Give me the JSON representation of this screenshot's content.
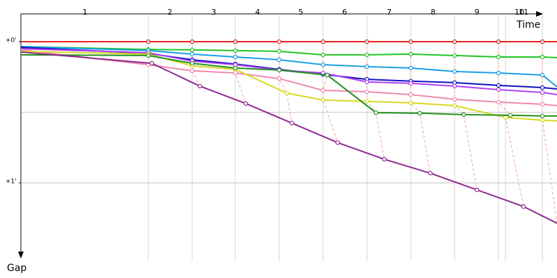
{
  "chart_data": {
    "type": "line",
    "x_label": "Time",
    "y_label": "Gap",
    "xlim": [
      0,
      770
    ],
    "ylim": [
      -11.8,
      91.6
    ],
    "yticks": [
      {
        "value": 0,
        "label": "+0'"
      },
      {
        "value": 60,
        "label": "+1'"
      }
    ],
    "grid": [
      30,
      60
    ],
    "lap_lines": [
      183,
      246,
      308,
      371,
      434,
      497,
      560,
      623,
      686,
      696,
      749
    ],
    "laps": [
      {
        "label": "1",
        "x": 92
      },
      {
        "label": "2",
        "x": 214
      },
      {
        "label": "3",
        "x": 277
      },
      {
        "label": "4",
        "x": 340
      },
      {
        "label": "5",
        "x": 402
      },
      {
        "label": "6",
        "x": 465
      },
      {
        "label": "7",
        "x": 529
      },
      {
        "label": "8",
        "x": 592
      },
      {
        "label": "9",
        "x": 655
      },
      {
        "label": "10",
        "x": 716
      },
      {
        "label": "11",
        "x": 722
      }
    ],
    "series": [
      {
        "color": "#e8201c",
        "x": [
          0,
          183,
          246,
          308,
          371,
          434,
          497,
          560,
          623,
          686,
          749,
          770
        ],
        "values": [
          0,
          0,
          0,
          0,
          0,
          0,
          0,
          0,
          0,
          0,
          0,
          0
        ]
      },
      {
        "color": "#22c422",
        "x": [
          0,
          183,
          246,
          308,
          371,
          434,
          497,
          560,
          623,
          686,
          749,
          770
        ],
        "values": [
          2.1,
          3.3,
          3.5,
          3.8,
          4.1,
          5.6,
          5.6,
          5.3,
          5.9,
          6.5,
          6.5,
          6.8
        ]
      },
      {
        "color": "#1a9ee8",
        "x": [
          0,
          183,
          246,
          308,
          371,
          434,
          497,
          560,
          623,
          686,
          749,
          770
        ],
        "values": [
          2.1,
          3.8,
          5.3,
          6.5,
          7.7,
          9.8,
          10.6,
          11.2,
          12.7,
          13.3,
          14.2,
          19.2
        ]
      },
      {
        "color": "#1010c0",
        "x": [
          0,
          183,
          246,
          308,
          371,
          434,
          497,
          560,
          623,
          686,
          749,
          770
        ],
        "values": [
          2.4,
          5.0,
          7.7,
          9.5,
          11.8,
          13.9,
          16.0,
          16.8,
          17.4,
          18.6,
          19.5,
          20.1
        ]
      },
      {
        "color": "#b040f0",
        "x": [
          0,
          183,
          246,
          308,
          371,
          434,
          497,
          560,
          623,
          686,
          749,
          770
        ],
        "values": [
          3.0,
          4.7,
          8.3,
          9.8,
          12.1,
          13.3,
          17.1,
          17.7,
          18.9,
          20.4,
          21.6,
          22.5
        ]
      },
      {
        "color": "#f088b0",
        "x": [
          0,
          183,
          246,
          308,
          371,
          434,
          497,
          560,
          623,
          686,
          749,
          770
        ],
        "values": [
          3.5,
          9.8,
          12.4,
          13.3,
          15.7,
          20.7,
          21.3,
          22.5,
          24.5,
          25.7,
          26.6,
          27.2
        ]
      },
      {
        "color": "#d8d820",
        "x": [
          0,
          183,
          246,
          308,
          382,
          434,
          497,
          560,
          623,
          696,
          749,
          770
        ],
        "values": [
          4.1,
          5.3,
          10.3,
          11.8,
          21.9,
          24.8,
          25.4,
          26.0,
          27.2,
          32.2,
          33.4,
          33.7
        ]
      },
      {
        "color": "#209020",
        "x": [
          0,
          183,
          246,
          308,
          371,
          440,
          510,
          573,
          636,
          703,
          749,
          770
        ],
        "values": [
          5.6,
          5.9,
          9.2,
          11.2,
          12.1,
          14.2,
          30.2,
          30.4,
          31.0,
          31.3,
          31.6,
          31.6
        ]
      },
      {
        "color": "#902890",
        "x": [
          0,
          188,
          257,
          323,
          389,
          455,
          522,
          588,
          655,
          722,
          770
        ],
        "values": [
          4.4,
          9.2,
          18.9,
          26.3,
          34.6,
          42.9,
          50.0,
          55.9,
          63.0,
          70.1,
          77.2
        ]
      }
    ]
  }
}
